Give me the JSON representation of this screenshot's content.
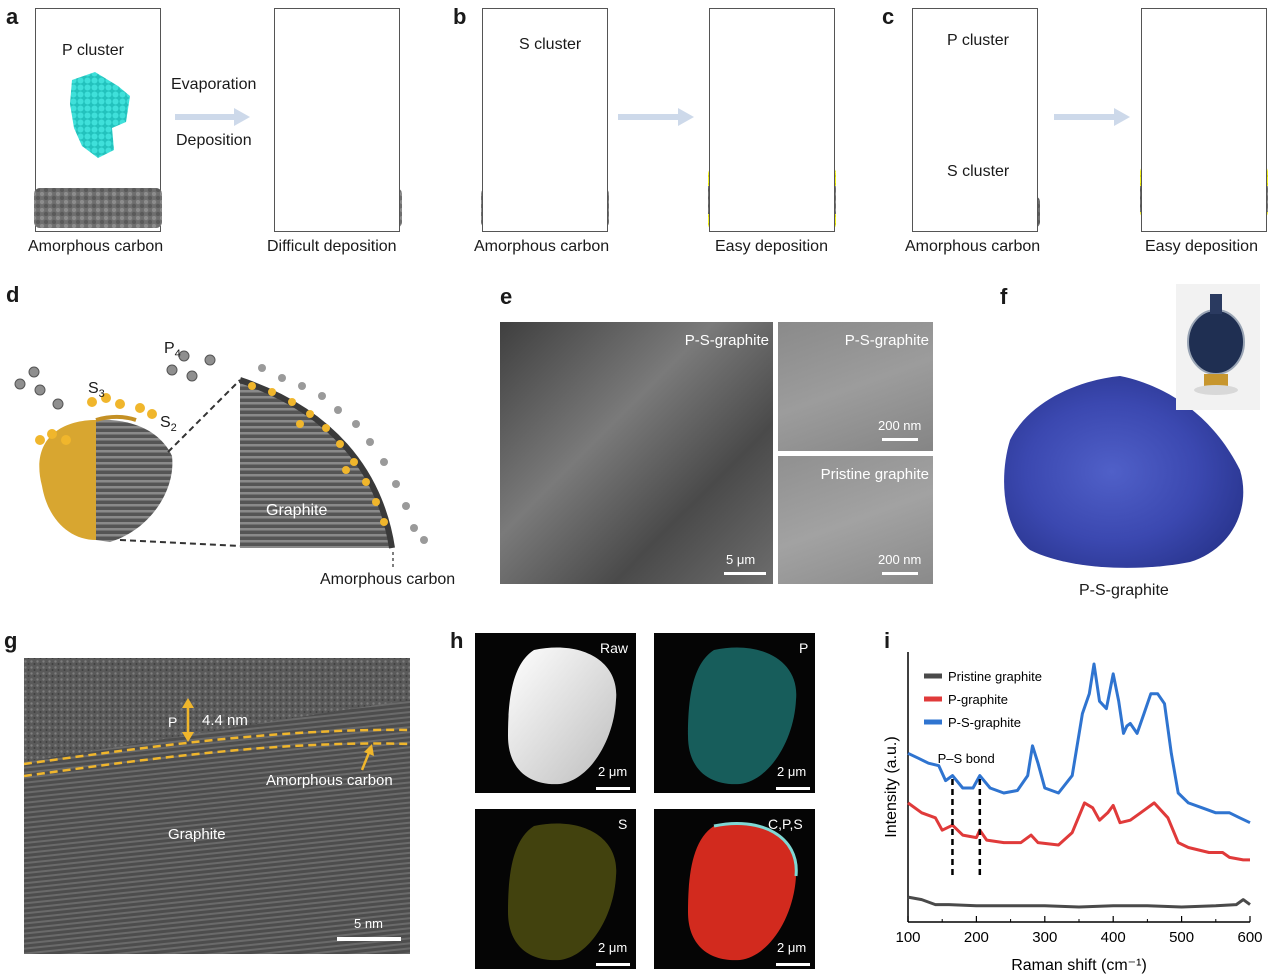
{
  "panels": {
    "a": {
      "letter": "a",
      "cluster_label": "P cluster",
      "arrow_top": "Evaporation",
      "arrow_bottom": "Deposition",
      "left_caption": "Amorphous carbon",
      "right_caption": "Difficult deposition"
    },
    "b": {
      "letter": "b",
      "cluster_label": "S cluster",
      "left_caption": "Amorphous carbon",
      "right_caption": "Easy deposition"
    },
    "c": {
      "letter": "c",
      "cluster_label_p": "P cluster",
      "cluster_label_s": "S cluster",
      "left_caption": "Amorphous carbon",
      "right_caption": "Easy deposition"
    },
    "d": {
      "letter": "d",
      "p4": "P",
      "p4_sub": "4",
      "s3": "S",
      "s3_sub": "3",
      "s2": "S",
      "s2_sub": "2",
      "graphite": "Graphite",
      "amorphous": "Amorphous carbon"
    },
    "e": {
      "letter": "e",
      "main_label": "P-S-graphite",
      "main_scale": "5 μm",
      "top_label": "P-S-graphite",
      "top_scale": "200 nm",
      "bottom_label": "Pristine graphite",
      "bottom_scale": "200 nm"
    },
    "f": {
      "letter": "f",
      "caption": "P-S-graphite"
    },
    "g": {
      "letter": "g",
      "thickness": "4.4 nm",
      "p_label": "P",
      "amorphous": "Amorphous carbon",
      "graphite": "Graphite",
      "scale": "5 nm"
    },
    "h": {
      "letter": "h",
      "tiles": [
        {
          "label": "Raw",
          "scale": "2 μm"
        },
        {
          "label": "P",
          "scale": "2 μm"
        },
        {
          "label": "S",
          "scale": "2 μm"
        },
        {
          "label": "C,P,S",
          "scale": "2 μm"
        }
      ]
    },
    "i": {
      "letter": "i",
      "annotation": "P–S bond"
    }
  },
  "colors": {
    "cyan": "#2ad4cf",
    "yellow": "#e6e600",
    "carbon": "#6e6e6e",
    "arrow": "#cdd9ea",
    "gold": "#e2b12a"
  },
  "chart_data": {
    "type": "line",
    "xlabel": "Raman shift (cm⁻¹)",
    "ylabel": "Intensity (a.u.)",
    "xlim": [
      100,
      600
    ],
    "x_ticks": [
      100,
      200,
      300,
      400,
      500,
      600
    ],
    "legend_position": "top-left",
    "grid": false,
    "series": [
      {
        "name": "Pristine graphite",
        "color": "#4a4a4a",
        "points": [
          [
            100,
            0.06
          ],
          [
            120,
            0.05
          ],
          [
            140,
            0.03
          ],
          [
            160,
            0.03
          ],
          [
            200,
            0.025
          ],
          [
            250,
            0.025
          ],
          [
            300,
            0.025
          ],
          [
            350,
            0.02
          ],
          [
            400,
            0.025
          ],
          [
            450,
            0.025
          ],
          [
            500,
            0.02
          ],
          [
            550,
            0.025
          ],
          [
            580,
            0.03
          ],
          [
            590,
            0.05
          ],
          [
            600,
            0.03
          ]
        ]
      },
      {
        "name": "P-graphite",
        "color": "#e03a3a",
        "points": [
          [
            100,
            0.44
          ],
          [
            120,
            0.4
          ],
          [
            140,
            0.38
          ],
          [
            150,
            0.33
          ],
          [
            165,
            0.35
          ],
          [
            180,
            0.31
          ],
          [
            200,
            0.3
          ],
          [
            205,
            0.33
          ],
          [
            215,
            0.29
          ],
          [
            240,
            0.28
          ],
          [
            265,
            0.28
          ],
          [
            280,
            0.31
          ],
          [
            290,
            0.28
          ],
          [
            320,
            0.27
          ],
          [
            340,
            0.32
          ],
          [
            358,
            0.44
          ],
          [
            370,
            0.42
          ],
          [
            380,
            0.37
          ],
          [
            392,
            0.4
          ],
          [
            400,
            0.43
          ],
          [
            410,
            0.36
          ],
          [
            425,
            0.37
          ],
          [
            440,
            0.4
          ],
          [
            460,
            0.44
          ],
          [
            480,
            0.38
          ],
          [
            495,
            0.28
          ],
          [
            510,
            0.26
          ],
          [
            540,
            0.24
          ],
          [
            560,
            0.24
          ],
          [
            570,
            0.22
          ],
          [
            590,
            0.21
          ],
          [
            600,
            0.21
          ]
        ]
      },
      {
        "name": "P-S-graphite",
        "color": "#2f74d0",
        "points": [
          [
            100,
            0.64
          ],
          [
            115,
            0.62
          ],
          [
            130,
            0.6
          ],
          [
            145,
            0.59
          ],
          [
            155,
            0.53
          ],
          [
            165,
            0.55
          ],
          [
            180,
            0.5
          ],
          [
            195,
            0.5
          ],
          [
            205,
            0.55
          ],
          [
            220,
            0.5
          ],
          [
            240,
            0.48
          ],
          [
            260,
            0.49
          ],
          [
            275,
            0.55
          ],
          [
            282,
            0.67
          ],
          [
            290,
            0.6
          ],
          [
            300,
            0.5
          ],
          [
            320,
            0.48
          ],
          [
            340,
            0.55
          ],
          [
            355,
            0.8
          ],
          [
            365,
            0.88
          ],
          [
            372,
            1.0
          ],
          [
            380,
            0.85
          ],
          [
            390,
            0.82
          ],
          [
            400,
            0.96
          ],
          [
            408,
            0.85
          ],
          [
            415,
            0.72
          ],
          [
            420,
            0.75
          ],
          [
            425,
            0.76
          ],
          [
            435,
            0.72
          ],
          [
            445,
            0.8
          ],
          [
            455,
            0.88
          ],
          [
            465,
            0.88
          ],
          [
            475,
            0.84
          ],
          [
            485,
            0.64
          ],
          [
            495,
            0.48
          ],
          [
            510,
            0.44
          ],
          [
            530,
            0.42
          ],
          [
            550,
            0.4
          ],
          [
            570,
            0.4
          ],
          [
            585,
            0.38
          ],
          [
            600,
            0.36
          ]
        ]
      }
    ]
  }
}
